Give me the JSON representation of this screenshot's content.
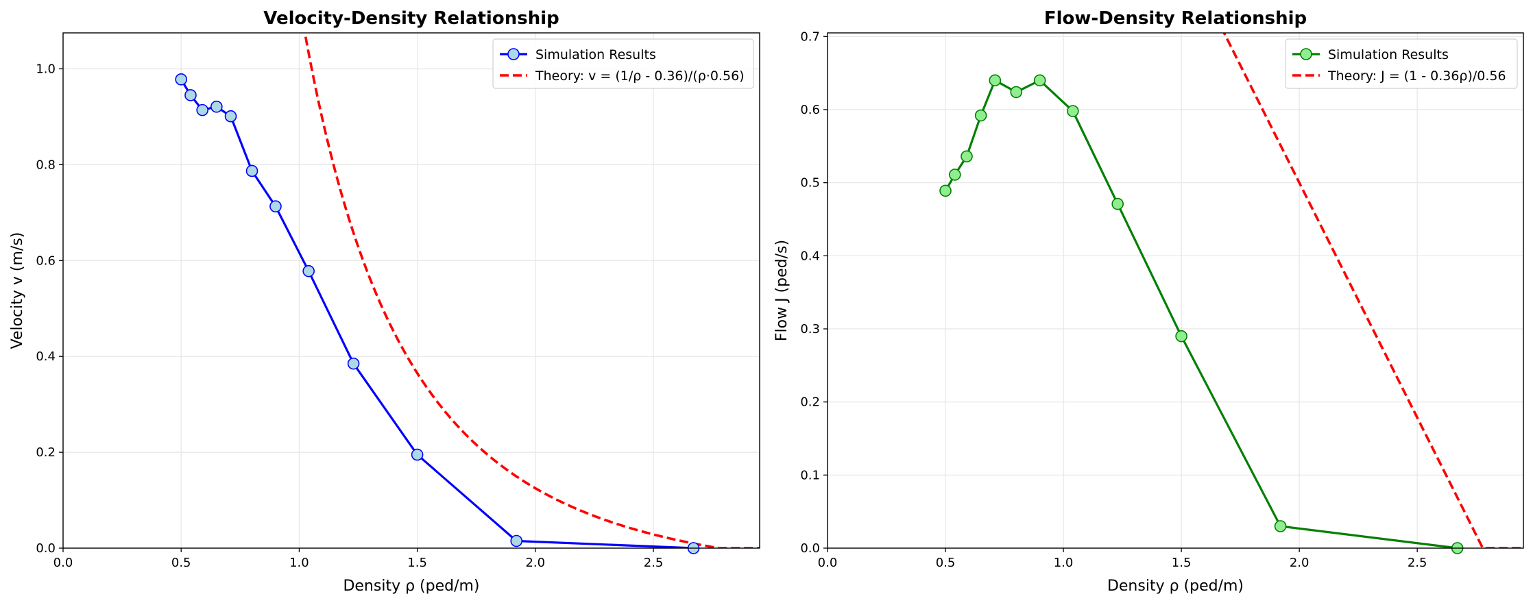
{
  "chart_data": [
    {
      "type": "line",
      "title": "Velocity-Density Relationship",
      "xlabel": "Density ρ (ped/m)",
      "ylabel": "Velocity v (m/s)",
      "xlim": [
        0,
        2.95
      ],
      "ylim": [
        0,
        1.075
      ],
      "xticks": [
        0.0,
        0.5,
        1.0,
        1.5,
        2.0,
        2.5
      ],
      "xtick_labels": [
        "0.0",
        "0.5",
        "1.0",
        "1.5",
        "2.0",
        "2.5"
      ],
      "yticks": [
        0.0,
        0.2,
        0.4,
        0.6,
        0.8,
        1.0
      ],
      "ytick_labels": [
        "0.0",
        "0.2",
        "0.4",
        "0.6",
        "0.8",
        "1.0"
      ],
      "grid": true,
      "legend_position": "top-right",
      "series": [
        {
          "name": "Simulation Results",
          "kind": "line-markers",
          "color": "#0000ff",
          "marker_fill": "#add8e6",
          "x": [
            0.5,
            0.54,
            0.59,
            0.65,
            0.71,
            0.8,
            0.9,
            1.04,
            1.23,
            1.5,
            1.92,
            2.67
          ],
          "y": [
            0.978,
            0.945,
            0.914,
            0.921,
            0.901,
            0.787,
            0.713,
            0.578,
            0.385,
            0.195,
            0.015,
            0.0
          ]
        },
        {
          "name": "Theory: v = (1/ρ - 0.36)/(ρ·0.56)",
          "kind": "dashed",
          "color": "#ff0000",
          "formula": "v = (1/ρ - 0.36)/(ρ·0.56)"
        }
      ]
    },
    {
      "type": "line",
      "title": "Flow-Density Relationship",
      "xlabel": "Density ρ (ped/m)",
      "ylabel": "Flow J (ped/s)",
      "xlim": [
        0,
        2.95
      ],
      "ylim": [
        0,
        0.705
      ],
      "xticks": [
        0.0,
        0.5,
        1.0,
        1.5,
        2.0,
        2.5
      ],
      "xtick_labels": [
        "0.0",
        "0.5",
        "1.0",
        "1.5",
        "2.0",
        "2.5"
      ],
      "yticks": [
        0.0,
        0.1,
        0.2,
        0.3,
        0.4,
        0.5,
        0.6,
        0.7
      ],
      "ytick_labels": [
        "0.0",
        "0.1",
        "0.2",
        "0.3",
        "0.4",
        "0.5",
        "0.6",
        "0.7"
      ],
      "grid": true,
      "legend_position": "top-right",
      "series": [
        {
          "name": "Simulation Results",
          "kind": "line-markers",
          "color": "#008000",
          "marker_fill": "#90ee90",
          "x": [
            0.5,
            0.54,
            0.59,
            0.65,
            0.71,
            0.8,
            0.9,
            1.04,
            1.23,
            1.5,
            1.92,
            2.67
          ],
          "y": [
            0.489,
            0.511,
            0.536,
            0.592,
            0.64,
            0.624,
            0.64,
            0.598,
            0.471,
            0.29,
            0.03,
            0.0
          ]
        },
        {
          "name": "Theory: J = (1 - 0.36ρ)/0.56",
          "kind": "dashed",
          "color": "#ff0000",
          "formula": "J = (1 - 0.36ρ)/0.56"
        }
      ]
    }
  ]
}
